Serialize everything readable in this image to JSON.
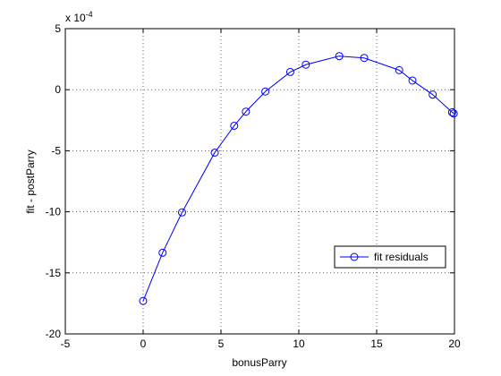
{
  "chart_data": {
    "type": "line",
    "title": "",
    "xlabel": "bonusParry",
    "ylabel": "fit - postParry",
    "exponent_label": "x 10",
    "exponent_power": "-4",
    "xlim": [
      -5,
      20
    ],
    "ylim": [
      -20,
      5
    ],
    "xticks": [
      -5,
      0,
      5,
      10,
      15,
      20
    ],
    "yticks": [
      -20,
      -15,
      -10,
      -5,
      0,
      5
    ],
    "xtick_labels": [
      "-5",
      "0",
      "5",
      "10",
      "15",
      "20"
    ],
    "ytick_labels": [
      "-20",
      "-15",
      "-10",
      "-5",
      "0",
      "5"
    ],
    "grid": true,
    "legend_position": "lower-right",
    "series": [
      {
        "name": "fit residuals",
        "color": "#0000ff",
        "marker": "circle",
        "x": [
          0,
          1.25,
          2.5,
          4.6,
          5.85,
          6.6,
          7.85,
          9.45,
          10.45,
          12.6,
          14.2,
          16.45,
          17.3,
          18.6,
          19.85,
          19.95
        ],
        "y": [
          -17.3,
          -13.35,
          -10.05,
          -5.15,
          -2.95,
          -1.8,
          -0.15,
          1.45,
          2.05,
          2.75,
          2.6,
          1.6,
          0.75,
          -0.4,
          -1.85,
          -1.95
        ]
      }
    ]
  }
}
